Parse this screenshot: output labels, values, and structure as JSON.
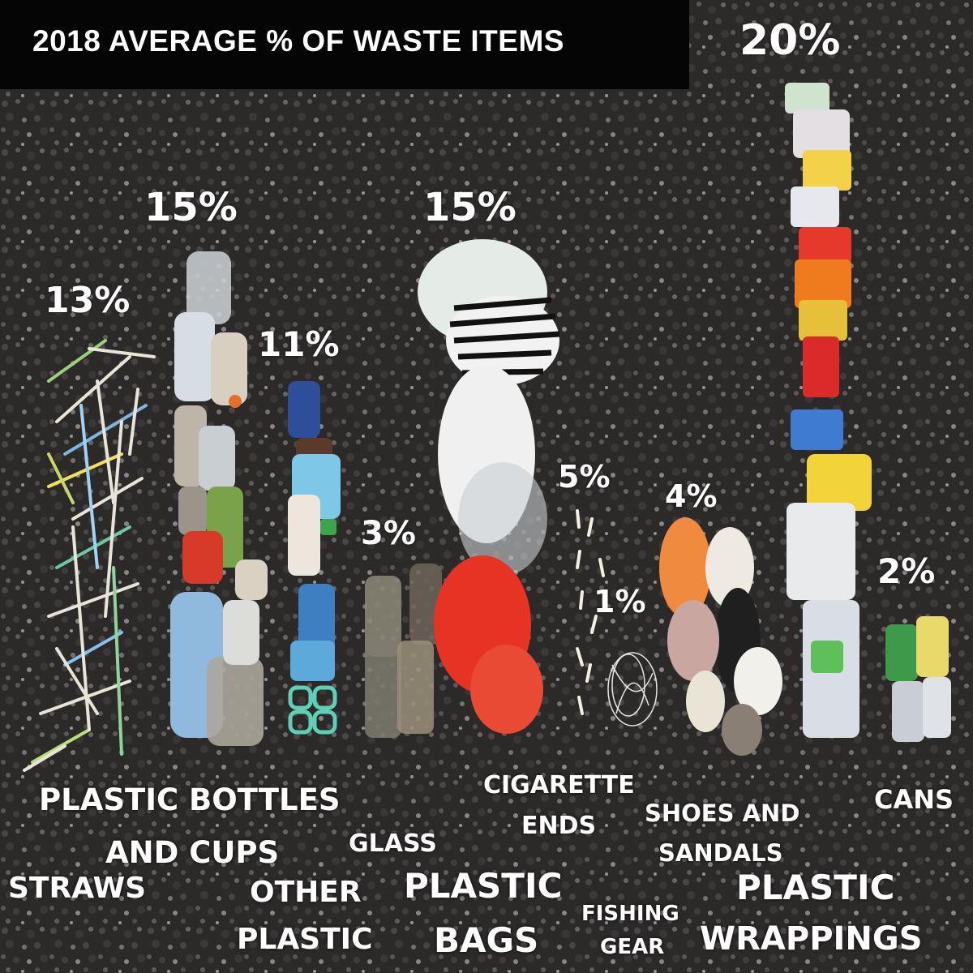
{
  "title": "2018 AVERAGE % OF WASTE ITEMS",
  "categories": [
    {
      "id": "straws",
      "label": "STRAWS",
      "percent": "13%"
    },
    {
      "id": "bottles",
      "label_line1": "PLASTIC BOTTLES",
      "label_line2": "AND CUPS",
      "percent": "15%"
    },
    {
      "id": "other-plastic",
      "label_line1": "OTHER",
      "label_line2": "PLASTIC",
      "percent": "11%"
    },
    {
      "id": "glass",
      "label": "GLASS",
      "percent": "3%"
    },
    {
      "id": "bags",
      "label_line1": "PLASTIC",
      "label_line2": "BAGS",
      "percent": "15%"
    },
    {
      "id": "cigarette",
      "label_line1": "CIGARETTE",
      "label_line2": "ENDS",
      "percent": "5%"
    },
    {
      "id": "fishing",
      "label_line1": "FISHING",
      "label_line2": "GEAR",
      "percent": "1%"
    },
    {
      "id": "shoes",
      "label_line1": "SHOES AND",
      "label_line2": "SANDALS",
      "percent": "4%"
    },
    {
      "id": "wrappings",
      "label_line1": "PLASTIC",
      "label_line2": "WRAPPINGS",
      "percent": "20%"
    },
    {
      "id": "cans",
      "label": "CANS",
      "percent": "2%"
    }
  ],
  "colors": {
    "title_bg": "#050505",
    "text": "#ffffff",
    "ground": "#2b2828"
  }
}
